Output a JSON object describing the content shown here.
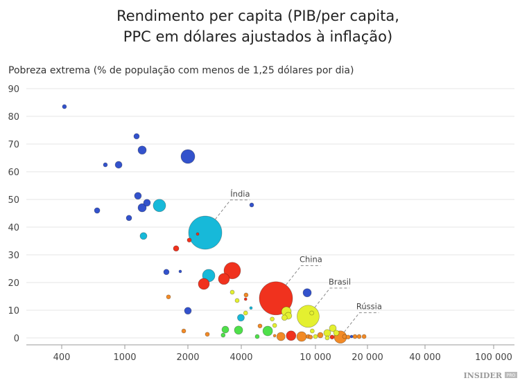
{
  "chart_data": {
    "type": "scatter",
    "title": [
      "Rendimento per capita (PIB/per capita,",
      "PPC em dólares ajustados à inflação)"
    ],
    "xlabel": "",
    "ylabel": "Pobreza extrema (% de população com menos de 1,25 dólares por dia)",
    "x_ticks": [
      400,
      1000,
      2000,
      4000,
      10000,
      20000,
      40000,
      100000
    ],
    "x_tick_labels": [
      "400",
      "1000",
      "2000",
      "4000",
      "10 000",
      "20 000",
      "40 000",
      "100 000"
    ],
    "y_ticks": [
      0,
      10,
      20,
      30,
      40,
      50,
      60,
      70,
      80,
      90
    ],
    "ylim": [
      0,
      90
    ],
    "xlim": [
      400,
      100000
    ],
    "grid": "horizontal",
    "colors": {
      "blue": "#3352cc",
      "cyan": "#17b9d9",
      "red": "#f0321e",
      "orange": "#f28a26",
      "yellow": "#e4f030",
      "green": "#4fe04a"
    },
    "points": [
      {
        "x": 416,
        "y": 83.5,
        "size": 3,
        "color": "blue"
      },
      {
        "x": 1138,
        "y": 72.8,
        "size": 4,
        "color": "blue"
      },
      {
        "x": 1210,
        "y": 67.8,
        "size": 6,
        "color": "blue"
      },
      {
        "x": 754,
        "y": 62.5,
        "size": 3,
        "color": "blue"
      },
      {
        "x": 914,
        "y": 62.5,
        "size": 5,
        "color": "blue"
      },
      {
        "x": 2000,
        "y": 65.5,
        "size": 10,
        "color": "blue"
      },
      {
        "x": 1155,
        "y": 51.3,
        "size": 5,
        "color": "blue"
      },
      {
        "x": 1276,
        "y": 48.8,
        "size": 5,
        "color": "blue"
      },
      {
        "x": 1210,
        "y": 47,
        "size": 6,
        "color": "blue"
      },
      {
        "x": 1463,
        "y": 47.8,
        "size": 9,
        "color": "cyan"
      },
      {
        "x": 669,
        "y": 46,
        "size": 4,
        "color": "blue"
      },
      {
        "x": 1047,
        "y": 43.3,
        "size": 4,
        "color": "blue"
      },
      {
        "x": 4549,
        "y": 48,
        "size": 3,
        "color": "blue"
      },
      {
        "x": 2505,
        "y": 38,
        "size": 24,
        "color": "cyan",
        "label": "Índia"
      },
      {
        "x": 2269,
        "y": 37.5,
        "size": 2,
        "color": "red"
      },
      {
        "x": 2036,
        "y": 35.3,
        "size": 3,
        "color": "red"
      },
      {
        "x": 1228,
        "y": 36.8,
        "size": 5,
        "color": "cyan"
      },
      {
        "x": 1757,
        "y": 32.3,
        "size": 4,
        "color": "red"
      },
      {
        "x": 1579,
        "y": 23.8,
        "size": 4,
        "color": "blue"
      },
      {
        "x": 1839,
        "y": 24,
        "size": 2,
        "color": "blue"
      },
      {
        "x": 2620,
        "y": 22.5,
        "size": 9,
        "color": "cyan"
      },
      {
        "x": 3558,
        "y": 24.3,
        "size": 12,
        "color": "red"
      },
      {
        "x": 3193,
        "y": 21.3,
        "size": 8,
        "color": "red"
      },
      {
        "x": 2460,
        "y": 19.5,
        "size": 8,
        "color": "red"
      },
      {
        "x": 3558,
        "y": 16.5,
        "size": 3,
        "color": "yellow"
      },
      {
        "x": 4243,
        "y": 15.5,
        "size": 3,
        "color": "orange"
      },
      {
        "x": 4220,
        "y": 14,
        "size": 2,
        "color": "red"
      },
      {
        "x": 1616,
        "y": 14.8,
        "size": 3,
        "color": "orange"
      },
      {
        "x": 3790,
        "y": 13.5,
        "size": 3,
        "color": "yellow"
      },
      {
        "x": 6137,
        "y": 14.3,
        "size": 24,
        "color": "red",
        "label": "China"
      },
      {
        "x": 9027,
        "y": 16.3,
        "size": 6,
        "color": "blue"
      },
      {
        "x": 2000,
        "y": 9.8,
        "size": 5,
        "color": "blue"
      },
      {
        "x": 4509,
        "y": 10.8,
        "size": 2,
        "color": "cyan"
      },
      {
        "x": 4220,
        "y": 9,
        "size": 3,
        "color": "yellow"
      },
      {
        "x": 3980,
        "y": 7.3,
        "size": 5,
        "color": "cyan"
      },
      {
        "x": 6981,
        "y": 9.5,
        "size": 7,
        "color": "yellow"
      },
      {
        "x": 7150,
        "y": 8,
        "size": 5,
        "color": "yellow"
      },
      {
        "x": 6820,
        "y": 7.3,
        "size": 4,
        "color": "yellow"
      },
      {
        "x": 9136,
        "y": 7.8,
        "size": 16,
        "color": "yellow",
        "label": "Brasil"
      },
      {
        "x": 9550,
        "y": 9,
        "size": 3,
        "color": "yellow"
      },
      {
        "x": 5860,
        "y": 6.8,
        "size": 3,
        "color": "yellow"
      },
      {
        "x": 6040,
        "y": 4.5,
        "size": 3,
        "color": "yellow"
      },
      {
        "x": 1911,
        "y": 2.5,
        "size": 3,
        "color": "orange"
      },
      {
        "x": 2574,
        "y": 1.3,
        "size": 3,
        "color": "orange"
      },
      {
        "x": 3252,
        "y": 3,
        "size": 5,
        "color": "green"
      },
      {
        "x": 3160,
        "y": 1,
        "size": 3,
        "color": "green"
      },
      {
        "x": 3860,
        "y": 2.8,
        "size": 6,
        "color": "green"
      },
      {
        "x": 5040,
        "y": 4.3,
        "size": 3,
        "color": "orange"
      },
      {
        "x": 4870,
        "y": 0.5,
        "size": 3,
        "color": "green"
      },
      {
        "x": 5544,
        "y": 2.5,
        "size": 7,
        "color": "green"
      },
      {
        "x": 6040,
        "y": 0.8,
        "size": 2,
        "color": "orange"
      },
      {
        "x": 6530,
        "y": 0.5,
        "size": 6,
        "color": "orange"
      },
      {
        "x": 7398,
        "y": 0.8,
        "size": 7,
        "color": "red"
      },
      {
        "x": 8426,
        "y": 0.5,
        "size": 7,
        "color": "orange"
      },
      {
        "x": 9610,
        "y": 2.5,
        "size": 3,
        "color": "yellow"
      },
      {
        "x": 9150,
        "y": 0.5,
        "size": 3,
        "color": "orange"
      },
      {
        "x": 9400,
        "y": 0.3,
        "size": 3,
        "color": "orange"
      },
      {
        "x": 10000,
        "y": 0.5,
        "size": 3,
        "color": "yellow"
      },
      {
        "x": 10670,
        "y": 1,
        "size": 4,
        "color": "orange"
      },
      {
        "x": 11700,
        "y": 1.8,
        "size": 5,
        "color": "yellow"
      },
      {
        "x": 11700,
        "y": 0,
        "size": 3,
        "color": "yellow"
      },
      {
        "x": 12600,
        "y": 3.5,
        "size": 5,
        "color": "yellow"
      },
      {
        "x": 13200,
        "y": 1.8,
        "size": 4,
        "color": "yellow"
      },
      {
        "x": 12480,
        "y": 0.3,
        "size": 3,
        "color": "red"
      },
      {
        "x": 13950,
        "y": 0.3,
        "size": 9,
        "color": "orange",
        "label": "Rússia"
      },
      {
        "x": 14740,
        "y": 0.5,
        "size": 3,
        "color": "orange"
      },
      {
        "x": 15450,
        "y": 0.3,
        "size": 3,
        "color": "orange"
      },
      {
        "x": 16180,
        "y": 0.5,
        "size": 2,
        "color": "blue"
      },
      {
        "x": 16930,
        "y": 0.5,
        "size": 3,
        "color": "orange"
      },
      {
        "x": 17900,
        "y": 0.5,
        "size": 3,
        "color": "orange"
      },
      {
        "x": 19120,
        "y": 0.5,
        "size": 3,
        "color": "orange"
      }
    ]
  },
  "logo": {
    "text": "INSIDER",
    "suffix": "PRO"
  }
}
